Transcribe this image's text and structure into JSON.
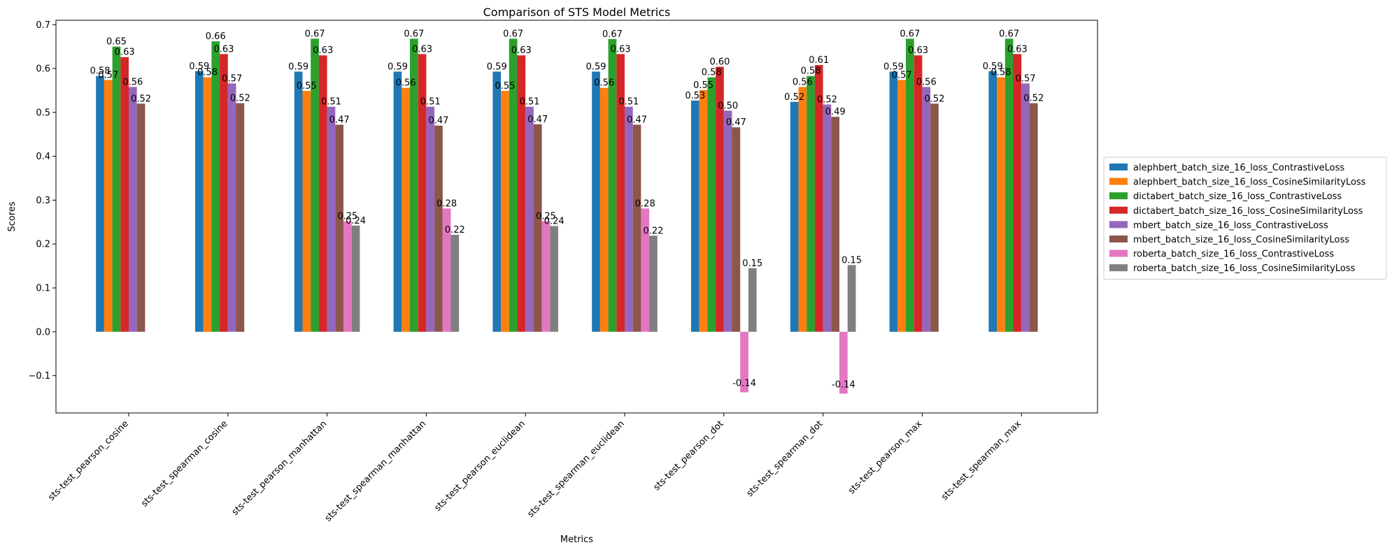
{
  "chart_data": {
    "type": "bar",
    "title": "Comparison of STS Model Metrics",
    "xlabel": "Metrics",
    "ylabel": "Scores",
    "ylim": [
      -0.185,
      0.71
    ],
    "yticks": [
      -0.1,
      0.0,
      0.1,
      0.2,
      0.3,
      0.4,
      0.5,
      0.6,
      0.7
    ],
    "ytick_labels": [
      "−0.1",
      "0.0",
      "0.1",
      "0.2",
      "0.3",
      "0.4",
      "0.5",
      "0.6",
      "0.7"
    ],
    "grid": false,
    "legend_position": "center-right, outside plot",
    "categories": [
      "sts-test_pearson_cosine",
      "sts-test_spearman_cosine",
      "sts-test_pearson_manhattan",
      "sts-test_spearman_manhattan",
      "sts-test_pearson_euclidean",
      "sts-test_spearman_euclidean",
      "sts-test_pearson_dot",
      "sts-test_spearman_dot",
      "sts-test_pearson_max",
      "sts-test_spearman_max"
    ],
    "series": [
      {
        "name": "alephbert_batch_size_16_loss_ContrastiveLoss",
        "color": "#1f77b4",
        "values": [
          0.583,
          0.594,
          0.593,
          0.593,
          0.593,
          0.593,
          0.527,
          0.524,
          0.593,
          0.594
        ],
        "labels": [
          "0.58",
          "0.59",
          "0.59",
          "0.59",
          "0.59",
          "0.59",
          "0.53",
          "0.52",
          "0.59",
          "0.59"
        ]
      },
      {
        "name": "alephbert_batch_size_16_loss_CosineSimilarityLoss",
        "color": "#ff7f0e",
        "values": [
          0.574,
          0.58,
          0.549,
          0.556,
          0.549,
          0.556,
          0.551,
          0.558,
          0.574,
          0.58
        ],
        "labels": [
          "0.57",
          "0.58",
          "0.55",
          "0.56",
          "0.55",
          "0.56",
          "0.55",
          "0.56",
          "0.57",
          "0.58"
        ]
      },
      {
        "name": "dictabert_batch_size_16_loss_ContrastiveLoss",
        "color": "#2ca02c",
        "values": [
          0.65,
          0.662,
          0.668,
          0.668,
          0.668,
          0.667,
          0.58,
          0.583,
          0.668,
          0.668
        ],
        "labels": [
          "0.65",
          "0.66",
          "0.67",
          "0.67",
          "0.67",
          "0.67",
          "0.58",
          "0.58",
          "0.67",
          "0.67"
        ]
      },
      {
        "name": "dictabert_batch_size_16_loss_CosineSimilarityLoss",
        "color": "#d62728",
        "values": [
          0.626,
          0.633,
          0.63,
          0.633,
          0.63,
          0.633,
          0.604,
          0.608,
          0.63,
          0.633
        ],
        "labels": [
          "0.63",
          "0.63",
          "0.63",
          "0.63",
          "0.63",
          "0.63",
          "0.60",
          "0.61",
          "0.63",
          "0.63"
        ]
      },
      {
        "name": "mbert_batch_size_16_loss_ContrastiveLoss",
        "color": "#9467bd",
        "values": [
          0.558,
          0.566,
          0.513,
          0.513,
          0.513,
          0.513,
          0.504,
          0.518,
          0.558,
          0.566
        ],
        "labels": [
          "0.56",
          "0.57",
          "0.51",
          "0.51",
          "0.51",
          "0.51",
          "0.50",
          "0.52",
          "0.56",
          "0.57"
        ]
      },
      {
        "name": "mbert_batch_size_16_loss_CosineSimilarityLoss",
        "color": "#8c564b",
        "values": [
          0.52,
          0.521,
          0.472,
          0.47,
          0.473,
          0.472,
          0.466,
          0.49,
          0.52,
          0.521
        ],
        "labels": [
          "0.52",
          "0.52",
          "0.47",
          "0.47",
          "0.47",
          "0.47",
          "0.47",
          "0.49",
          "0.52",
          "0.52"
        ]
      },
      {
        "name": "roberta_batch_size_16_loss_ContrastiveLoss",
        "color": "#e377c2",
        "values": [
          null,
          null,
          0.252,
          0.281,
          0.252,
          0.281,
          -0.138,
          -0.141,
          null,
          null
        ],
        "labels": [
          "",
          "",
          "0.25",
          "0.28",
          "0.25",
          "0.28",
          "-0.14",
          "-0.14",
          "",
          ""
        ]
      },
      {
        "name": "roberta_batch_size_16_loss_CosineSimilarityLoss",
        "color": "#7f7f7f",
        "values": [
          null,
          null,
          0.242,
          0.221,
          0.241,
          0.219,
          0.145,
          0.152,
          null,
          null
        ],
        "labels": [
          "",
          "",
          "0.24",
          "0.22",
          "0.24",
          "0.22",
          "0.15",
          "0.15",
          "",
          ""
        ]
      }
    ]
  }
}
